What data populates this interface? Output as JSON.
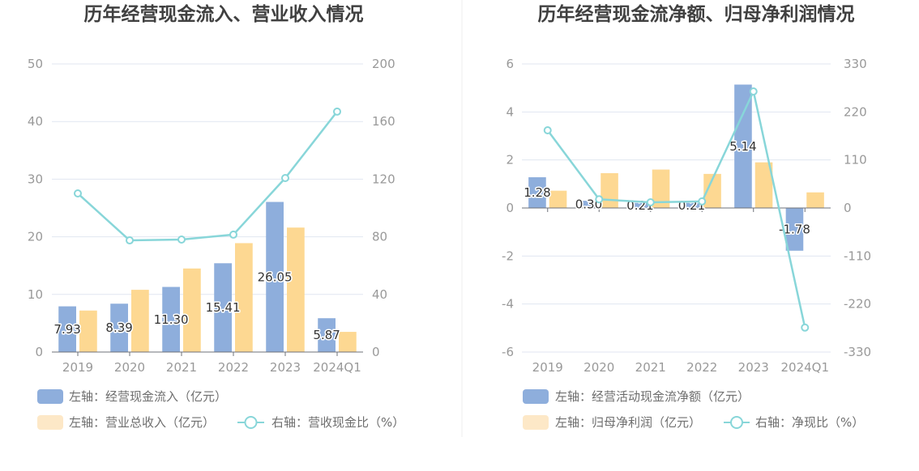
{
  "chart_data": [
    {
      "type": "bar",
      "title": "历年经营现金流入、营业收入情况",
      "categories": [
        "2019",
        "2020",
        "2021",
        "2022",
        "2023",
        "2024Q1"
      ],
      "y_left": {
        "range": [
          0,
          50
        ],
        "ticks": [
          "0",
          "10",
          "20",
          "30",
          "40",
          "50"
        ]
      },
      "y_right": {
        "range": [
          0,
          200
        ],
        "ticks": [
          "0",
          "40",
          "80",
          "120",
          "160",
          "200"
        ]
      },
      "grid": true,
      "legend_position": "bottom",
      "series": [
        {
          "name": "左轴：经营现金流入（亿元）",
          "type": "bar",
          "y_axis": "left",
          "values": [
            7.93,
            8.39,
            11.3,
            15.41,
            26.05,
            5.87
          ],
          "data_labels": [
            "7.93",
            "8.39",
            "11.30",
            "15.41",
            "26.05",
            "5.87"
          ],
          "color": "#8eaedc",
          "legend_color": "#8eaedc"
        },
        {
          "name": "左轴：营业总收入（亿元）",
          "type": "bar",
          "y_axis": "left",
          "values": [
            7.2,
            10.8,
            14.5,
            18.9,
            21.6,
            3.5
          ],
          "color": "#fdd892",
          "legend_color": "#fde8c7"
        },
        {
          "name": "右轴：营收现金比（%）",
          "type": "line",
          "y_axis": "right",
          "values": [
            110.1,
            77.5,
            78.1,
            81.5,
            120.8,
            166.9
          ],
          "color": "#88d6d9",
          "legend_color": "#88d6d9"
        }
      ]
    },
    {
      "type": "bar",
      "title": "历年经营现金流净额、归母净利润情况",
      "categories": [
        "2019",
        "2020",
        "2021",
        "2022",
        "2023",
        "2024Q1"
      ],
      "y_left": {
        "range": [
          -6,
          6
        ],
        "ticks": [
          "-6",
          "-4",
          "-2",
          "0",
          "2",
          "4",
          "6"
        ]
      },
      "y_right": {
        "range": [
          -330,
          330
        ],
        "ticks": [
          "-330",
          "-220",
          "-110",
          "0",
          "110",
          "220",
          "330"
        ]
      },
      "grid": true,
      "legend_position": "bottom",
      "series": [
        {
          "name": "左轴：经营活动现金流净额（亿元）",
          "type": "bar",
          "y_axis": "left",
          "values": [
            1.28,
            0.3,
            0.21,
            0.21,
            5.14,
            -1.78
          ],
          "data_labels": [
            "1.28",
            "0.30",
            "0.21",
            "0.21",
            "5.14",
            "-1.78"
          ],
          "color": "#8eaedc",
          "legend_color": "#8eaedc"
        },
        {
          "name": "左轴：归母净利润（亿元）",
          "type": "bar",
          "y_axis": "left",
          "values": [
            0.72,
            1.45,
            1.6,
            1.42,
            1.9,
            0.65
          ],
          "color": "#fdd892",
          "legend_color": "#fde8c7"
        },
        {
          "name": "右轴：净现比（%）",
          "type": "line",
          "y_axis": "right",
          "values": [
            178,
            20,
            13,
            15,
            267,
            -274
          ],
          "color": "#88d6d9",
          "legend_color": "#88d6d9"
        }
      ]
    }
  ]
}
